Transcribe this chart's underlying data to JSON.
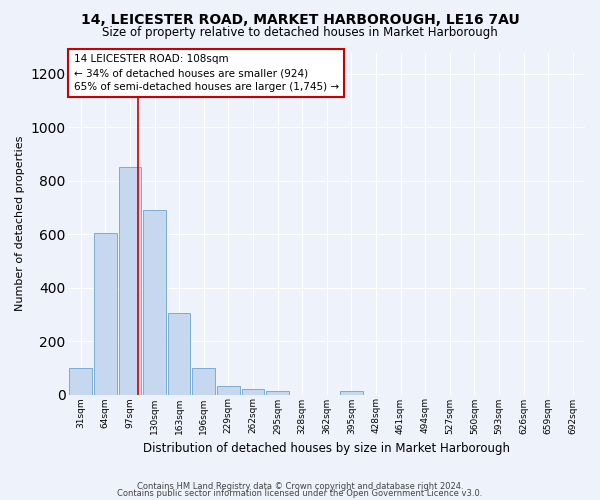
{
  "title": "14, LEICESTER ROAD, MARKET HARBOROUGH, LE16 7AU",
  "subtitle": "Size of property relative to detached houses in Market Harborough",
  "xlabel": "Distribution of detached houses by size in Market Harborough",
  "ylabel": "Number of detached properties",
  "bar_color": "#c5d8f0",
  "bar_edge_color": "#7aadd4",
  "background_color": "#eef2fa",
  "grid_color": "#ffffff",
  "categories": [
    "31sqm",
    "64sqm",
    "97sqm",
    "130sqm",
    "163sqm",
    "196sqm",
    "229sqm",
    "262sqm",
    "295sqm",
    "328sqm",
    "362sqm",
    "395sqm",
    "428sqm",
    "461sqm",
    "494sqm",
    "527sqm",
    "560sqm",
    "593sqm",
    "626sqm",
    "659sqm",
    "692sqm"
  ],
  "values": [
    100,
    605,
    850,
    690,
    305,
    100,
    30,
    22,
    12,
    0,
    0,
    15,
    0,
    0,
    0,
    0,
    0,
    0,
    0,
    0,
    0
  ],
  "ylim": [
    0,
    1280
  ],
  "yticks": [
    0,
    200,
    400,
    600,
    800,
    1000,
    1200
  ],
  "property_label": "14 LEICESTER ROAD: 108sqm",
  "annotation_line1": "← 34% of detached houses are smaller (924)",
  "annotation_line2": "65% of semi-detached houses are larger (1,745) →",
  "annotation_box_color": "#ffffff",
  "annotation_box_edge": "#cc0000",
  "vline_color": "#cc0000",
  "footer1": "Contains HM Land Registry data © Crown copyright and database right 2024.",
  "footer2": "Contains public sector information licensed under the Open Government Licence v3.0.",
  "title_fontsize": 10,
  "subtitle_fontsize": 8.5,
  "ylabel_fontsize": 8,
  "xlabel_fontsize": 8.5,
  "tick_fontsize": 6.5,
  "footer_fontsize": 6,
  "annot_fontsize": 7.5
}
